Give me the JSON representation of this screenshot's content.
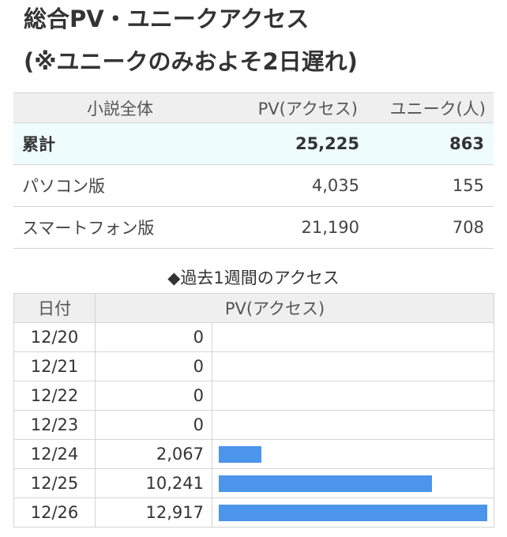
{
  "heading": {
    "line1": "総合PV・ユニークアクセス",
    "line2": "(※ユニークのみおよそ2日遅れ)"
  },
  "summary": {
    "headers": [
      "小説全体",
      "PV(アクセス)",
      "ユニーク(人)"
    ],
    "rows": [
      {
        "label": "累計",
        "pv": "25,225",
        "unique": "863"
      },
      {
        "label": "パソコン版",
        "pv": "4,035",
        "unique": "155"
      },
      {
        "label": "スマートフォン版",
        "pv": "21,190",
        "unique": "708"
      }
    ]
  },
  "weekly": {
    "title": "◆過去1週間のアクセス",
    "headers": {
      "date": "日付",
      "pv": "PV(アクセス)"
    },
    "colors": {
      "bar": "#4b95ea"
    },
    "rows": [
      {
        "date": "12/20",
        "pv_label": "0",
        "pv": 0
      },
      {
        "date": "12/21",
        "pv_label": "0",
        "pv": 0
      },
      {
        "date": "12/22",
        "pv_label": "0",
        "pv": 0
      },
      {
        "date": "12/23",
        "pv_label": "0",
        "pv": 0
      },
      {
        "date": "12/24",
        "pv_label": "2,067",
        "pv": 2067
      },
      {
        "date": "12/25",
        "pv_label": "10,241",
        "pv": 10241
      },
      {
        "date": "12/26",
        "pv_label": "12,917",
        "pv": 12917
      }
    ]
  }
}
